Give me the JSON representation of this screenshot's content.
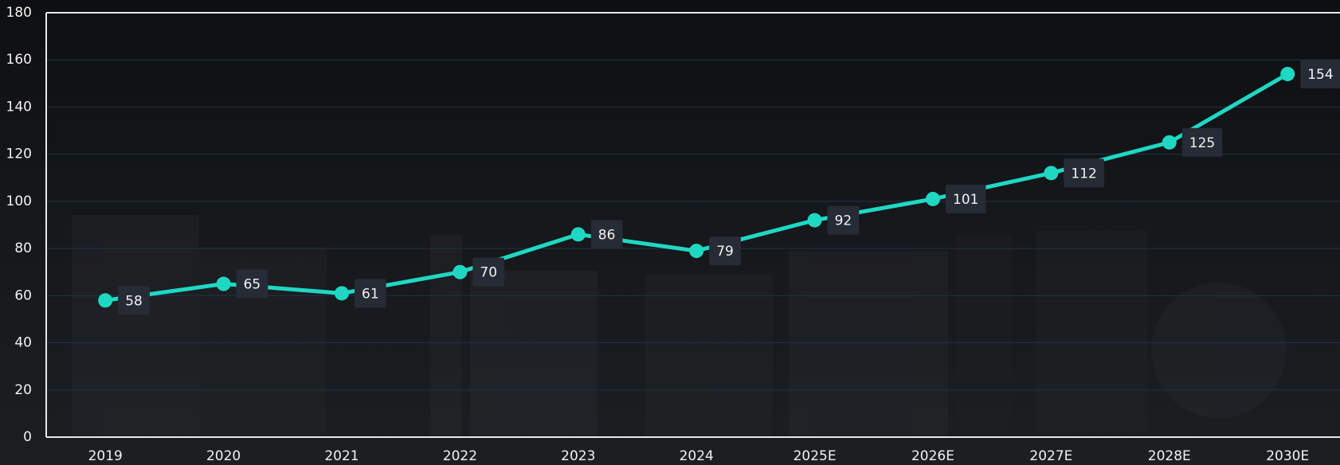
{
  "chart_data": {
    "type": "line",
    "categories": [
      "2019",
      "2020",
      "2021",
      "2022",
      "2023",
      "2024",
      "2025E",
      "2026E",
      "2027E",
      "2028E",
      "2030E"
    ],
    "values": [
      58,
      65,
      61,
      70,
      86,
      79,
      92,
      101,
      112,
      125,
      154
    ],
    "color": "#1fd8c4",
    "ylim": [
      0,
      180
    ],
    "yticks": [
      0,
      20,
      40,
      60,
      80,
      100,
      120,
      140,
      160,
      180
    ],
    "grid": true
  }
}
